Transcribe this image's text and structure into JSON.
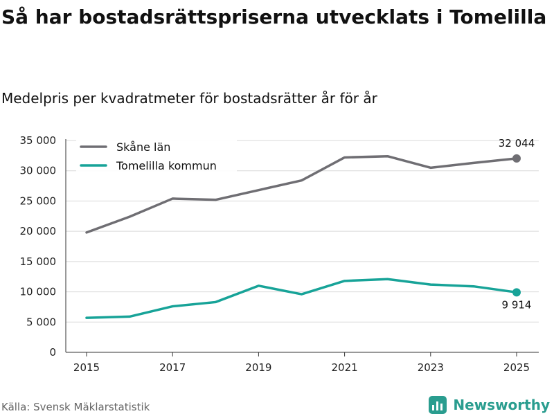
{
  "header": {
    "title": "Så har bostadsrättspriserna utvecklats i Tomelilla",
    "subtitle": "Medelpris per kvadratmeter för bostadsrätter år för år"
  },
  "footer": {
    "source": "Källa: Svensk Mäklarstatistik",
    "brand": "Newsworthy"
  },
  "colors": {
    "skane": "#6f6e73",
    "tomelilla": "#17a398",
    "grid": "#d9d9d9",
    "brand": "#2a9d8f"
  },
  "chart_data": {
    "type": "line",
    "x": [
      2015,
      2016,
      2017,
      2018,
      2019,
      2020,
      2021,
      2022,
      2023,
      2024,
      2025
    ],
    "x_tick_labels": [
      "2015",
      "2017",
      "2019",
      "2021",
      "2023",
      "2025"
    ],
    "x_tick_values": [
      2015,
      2017,
      2019,
      2021,
      2023,
      2025
    ],
    "xlim": [
      2014.5,
      2025.5
    ],
    "ylim": [
      0,
      35000
    ],
    "y_tick_values": [
      0,
      5000,
      10000,
      15000,
      20000,
      25000,
      30000,
      35000
    ],
    "y_tick_labels": [
      "0",
      "5 000",
      "10 000",
      "15 000",
      "20 000",
      "25 000",
      "30 000",
      "35 000"
    ],
    "grid": true,
    "legend": "top-left",
    "series": [
      {
        "name": "Skåne län",
        "color_key": "skane",
        "values": [
          19800,
          22400,
          25400,
          25200,
          26800,
          28400,
          32200,
          32400,
          30500,
          31300,
          32044
        ],
        "end_label": "32 044",
        "end_label_position": "above"
      },
      {
        "name": "Tomelilla kommun",
        "color_key": "tomelilla",
        "values": [
          5700,
          5900,
          7600,
          8300,
          11000,
          9600,
          11800,
          12100,
          11200,
          10900,
          9914
        ],
        "end_label": "9 914",
        "end_label_position": "below"
      }
    ]
  }
}
